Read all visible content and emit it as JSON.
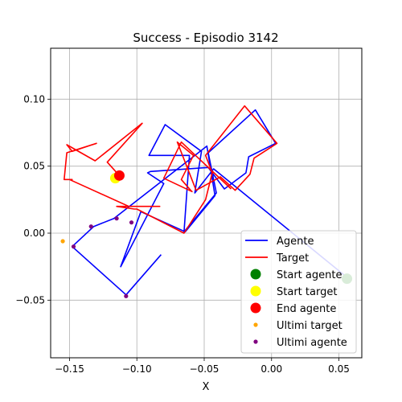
{
  "chart_data": {
    "type": "line",
    "title": "Success - Episodio 3142",
    "xlabel": "X",
    "ylabel": "",
    "xlim": [
      -0.164,
      0.067
    ],
    "ylim": [
      -0.093,
      0.138
    ],
    "grid": true,
    "legend_position": "lower-right",
    "x_ticks": [
      -0.15,
      -0.1,
      -0.05,
      0.0,
      0.05
    ],
    "x_tick_labels": [
      "−0.15",
      "−0.10",
      "−0.05",
      "0.00",
      "0.05"
    ],
    "y_ticks": [
      -0.05,
      0.0,
      0.05,
      0.1
    ],
    "y_tick_labels": [
      "−0.05",
      "0.00",
      "0.05",
      "0.10"
    ],
    "series": [
      {
        "name": "Agente",
        "kind": "line",
        "color": "#0000ff",
        "x": [
          0.056,
          -0.043,
          -0.057,
          -0.052,
          -0.079,
          -0.091,
          -0.061,
          -0.065,
          -0.041,
          -0.047,
          -0.012,
          0.003,
          -0.017,
          -0.019,
          -0.035,
          -0.047,
          -0.09,
          -0.092,
          -0.08,
          -0.112,
          -0.097,
          -0.064,
          -0.042,
          -0.048,
          -0.117,
          -0.132,
          -0.148,
          -0.108,
          -0.082
        ],
        "y": [
          -0.033,
          0.048,
          0.03,
          0.061,
          0.081,
          0.058,
          0.058,
          0.001,
          0.03,
          0.06,
          0.092,
          0.067,
          0.057,
          0.045,
          0.033,
          0.049,
          0.046,
          0.045,
          0.037,
          -0.025,
          0.016,
          0.001,
          0.028,
          0.065,
          0.011,
          0.005,
          -0.01,
          -0.046,
          -0.016
        ]
      },
      {
        "name": "Target",
        "kind": "line",
        "color": "#ff0000",
        "x": [
          -0.113,
          -0.122,
          -0.096,
          -0.131,
          -0.152,
          -0.148,
          -0.13,
          -0.152,
          -0.154,
          -0.148,
          -0.148,
          -0.15,
          -0.106,
          -0.1,
          -0.083,
          -0.115,
          -0.102,
          -0.1,
          -0.065,
          -0.049,
          -0.044,
          -0.049,
          -0.02,
          0.004,
          -0.013,
          -0.016,
          -0.027,
          -0.038,
          -0.056,
          -0.07,
          -0.058,
          -0.067,
          -0.06,
          -0.059,
          -0.08,
          -0.067,
          -0.03
        ],
        "y": [
          0.043,
          0.053,
          0.082,
          0.054,
          0.066,
          0.061,
          0.067,
          0.06,
          0.04,
          0.04,
          0.04,
          0.04,
          0.02,
          0.02,
          0.02,
          0.02,
          0.018,
          0.018,
          0.0,
          0.025,
          0.045,
          0.058,
          0.095,
          0.067,
          0.056,
          0.044,
          0.032,
          0.042,
          0.032,
          0.068,
          0.058,
          0.04,
          0.032,
          0.031,
          0.041,
          0.068,
          0.033
        ]
      },
      {
        "name": "Start agente",
        "kind": "marker",
        "color": "#008000",
        "x": [
          0.056
        ],
        "y": [
          -0.034
        ]
      },
      {
        "name": "Start target",
        "kind": "marker",
        "color": "#ffff00",
        "x": [
          -0.116
        ],
        "y": [
          0.041
        ]
      },
      {
        "name": "End agente",
        "kind": "marker",
        "color": "#ff0000",
        "x": [
          -0.113
        ],
        "y": [
          0.043
        ]
      },
      {
        "name": "Ultimi target",
        "kind": "dots",
        "color": "#ffa500",
        "x": [
          -0.155,
          -0.112
        ],
        "y": [
          -0.006,
          0.042
        ]
      },
      {
        "name": "Ultimi agente",
        "kind": "dots",
        "color": "#800080",
        "x": [
          -0.147,
          -0.134,
          -0.115,
          -0.104,
          -0.108
        ],
        "y": [
          -0.01,
          0.005,
          0.011,
          0.008,
          -0.047
        ]
      }
    ]
  }
}
